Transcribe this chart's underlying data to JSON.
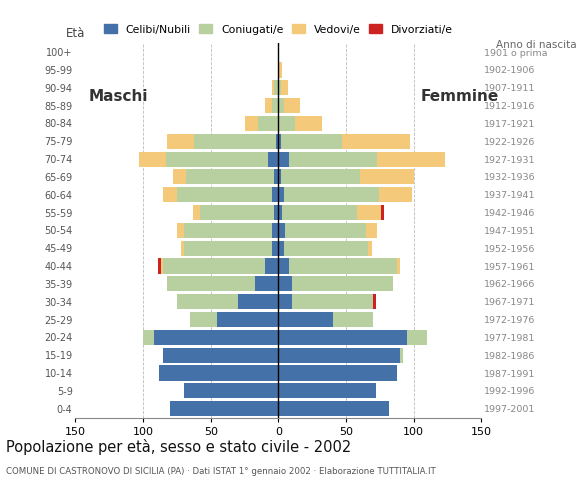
{
  "age_groups": [
    "0-4",
    "5-9",
    "10-14",
    "15-19",
    "20-24",
    "25-29",
    "30-34",
    "35-39",
    "40-44",
    "45-49",
    "50-54",
    "55-59",
    "60-64",
    "65-69",
    "70-74",
    "75-79",
    "80-84",
    "85-89",
    "90-94",
    "95-99",
    "100+"
  ],
  "birth_years": [
    "1997-2001",
    "1992-1996",
    "1987-1991",
    "1982-1986",
    "1977-1981",
    "1972-1976",
    "1967-1971",
    "1962-1966",
    "1957-1961",
    "1952-1956",
    "1947-1951",
    "1942-1946",
    "1937-1941",
    "1932-1936",
    "1927-1931",
    "1922-1926",
    "1917-1921",
    "1912-1916",
    "1907-1911",
    "1902-1906",
    "1901 o prima"
  ],
  "male": {
    "celibe": [
      80,
      70,
      88,
      85,
      92,
      45,
      30,
      17,
      10,
      5,
      5,
      3,
      5,
      3,
      8,
      2,
      0,
      0,
      0,
      0,
      0
    ],
    "coniugato": [
      0,
      0,
      0,
      0,
      8,
      20,
      45,
      65,
      75,
      65,
      65,
      55,
      70,
      65,
      75,
      60,
      15,
      5,
      3,
      0,
      0
    ],
    "vedovo": [
      0,
      0,
      0,
      0,
      0,
      0,
      0,
      0,
      2,
      2,
      5,
      5,
      10,
      10,
      20,
      20,
      10,
      5,
      2,
      0,
      0
    ],
    "divorziato": [
      0,
      0,
      0,
      0,
      0,
      0,
      0,
      0,
      2,
      0,
      0,
      0,
      0,
      0,
      0,
      0,
      0,
      0,
      0,
      0,
      0
    ]
  },
  "female": {
    "nubile": [
      82,
      72,
      88,
      90,
      95,
      40,
      10,
      10,
      8,
      4,
      5,
      3,
      4,
      2,
      8,
      2,
      0,
      0,
      0,
      0,
      0
    ],
    "coniugata": [
      0,
      0,
      0,
      2,
      15,
      30,
      60,
      75,
      80,
      62,
      60,
      55,
      70,
      58,
      65,
      45,
      12,
      4,
      2,
      0,
      0
    ],
    "vedova": [
      0,
      0,
      0,
      0,
      0,
      0,
      0,
      0,
      2,
      3,
      8,
      18,
      25,
      40,
      50,
      50,
      20,
      12,
      5,
      3,
      0
    ],
    "divorziata": [
      0,
      0,
      0,
      0,
      0,
      0,
      2,
      0,
      0,
      0,
      0,
      2,
      0,
      0,
      0,
      0,
      0,
      0,
      0,
      0,
      0
    ]
  },
  "colors": {
    "celibe": "#4472a8",
    "coniugato": "#b8cfa0",
    "vedovo": "#f5c97a",
    "divorziato": "#cc2222"
  },
  "xlim": 150,
  "title": "Popolazione per età, sesso e stato civile - 2002",
  "subtitle": "COMUNE DI CASTRONOVO DI SICILIA (PA) · Dati ISTAT 1° gennaio 2002 · Elaborazione TUTTITALIA.IT",
  "ylabel_left": "Età",
  "ylabel_right": "Anno di nascita",
  "legend_labels": [
    "Celibi/Nubili",
    "Coniugati/e",
    "Vedovi/e",
    "Divorziati/e"
  ],
  "maschi_label": "Maschi",
  "femmine_label": "Femmine"
}
